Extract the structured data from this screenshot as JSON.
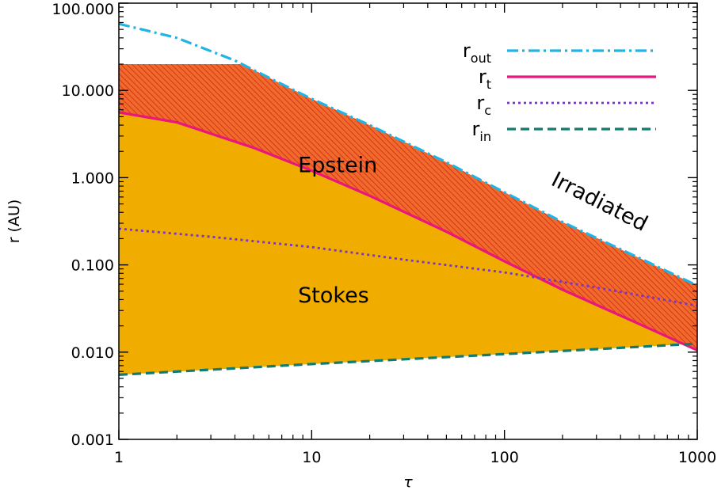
{
  "chart_data": {
    "type": "line",
    "xlabel": "τ",
    "ylabel": "r (AU)",
    "xscale": "log",
    "yscale": "log",
    "xlim": [
      1,
      1000
    ],
    "ylim": [
      0.001,
      100
    ],
    "x_ticks": [
      {
        "value": 1,
        "label": "1"
      },
      {
        "value": 10,
        "label": "10"
      },
      {
        "value": 100,
        "label": "100"
      },
      {
        "value": 1000,
        "label": "1000"
      }
    ],
    "y_ticks": [
      {
        "value": 0.001,
        "label": "0.001"
      },
      {
        "value": 0.01,
        "label": "0.010"
      },
      {
        "value": 0.1,
        "label": "0.100"
      },
      {
        "value": 1,
        "label": "1.000"
      },
      {
        "value": 10,
        "label": "10.000"
      },
      {
        "value": 100,
        "label": "100.000"
      }
    ],
    "legend_position": "top-right",
    "series": [
      {
        "key": "r_out",
        "name": "r",
        "subscript": "out",
        "color": "#1fb4e6",
        "style": "dash-dot",
        "x": [
          1,
          2,
          4,
          6,
          10,
          20,
          50,
          100,
          200,
          500,
          1000
        ],
        "y": [
          58,
          40,
          22,
          14,
          8.0,
          4.0,
          1.5,
          0.68,
          0.31,
          0.12,
          0.058
        ]
      },
      {
        "key": "r_t",
        "name": "r",
        "subscript": "t",
        "color": "#e8167d",
        "style": "solid",
        "x": [
          1,
          2,
          5,
          10,
          20,
          50,
          100,
          200,
          500,
          1000
        ],
        "y": [
          5.6,
          4.3,
          2.2,
          1.2,
          0.62,
          0.24,
          0.11,
          0.052,
          0.021,
          0.0105
        ]
      },
      {
        "key": "r_c",
        "name": "r",
        "subscript": "c",
        "color": "#7a35c8",
        "style": "dotted",
        "x": [
          1,
          3,
          10,
          30,
          100,
          300,
          1000
        ],
        "y": [
          0.26,
          0.21,
          0.16,
          0.115,
          0.082,
          0.055,
          0.034
        ]
      },
      {
        "key": "r_in",
        "name": "r",
        "subscript": "in",
        "color": "#157a6e",
        "style": "dashed",
        "x": [
          1,
          10,
          100,
          1000
        ],
        "y": [
          0.0055,
          0.0073,
          0.0095,
          0.0125
        ]
      }
    ],
    "regions": [
      {
        "label": "Epstein",
        "x": 8.5,
        "y": 1.15,
        "rotation": 0
      },
      {
        "label": "Stokes",
        "x": 8.5,
        "y": 0.037,
        "rotation": 0
      },
      {
        "label": "Irradiated",
        "x": 300,
        "y": 0.45,
        "rotation": 27
      }
    ],
    "irradiated_cap_y": 20,
    "colors": {
      "stokes_fill": "#f0ad00",
      "irradiated_fill": "#f06a2c",
      "irradiated_hatch": "#d8341c"
    }
  }
}
